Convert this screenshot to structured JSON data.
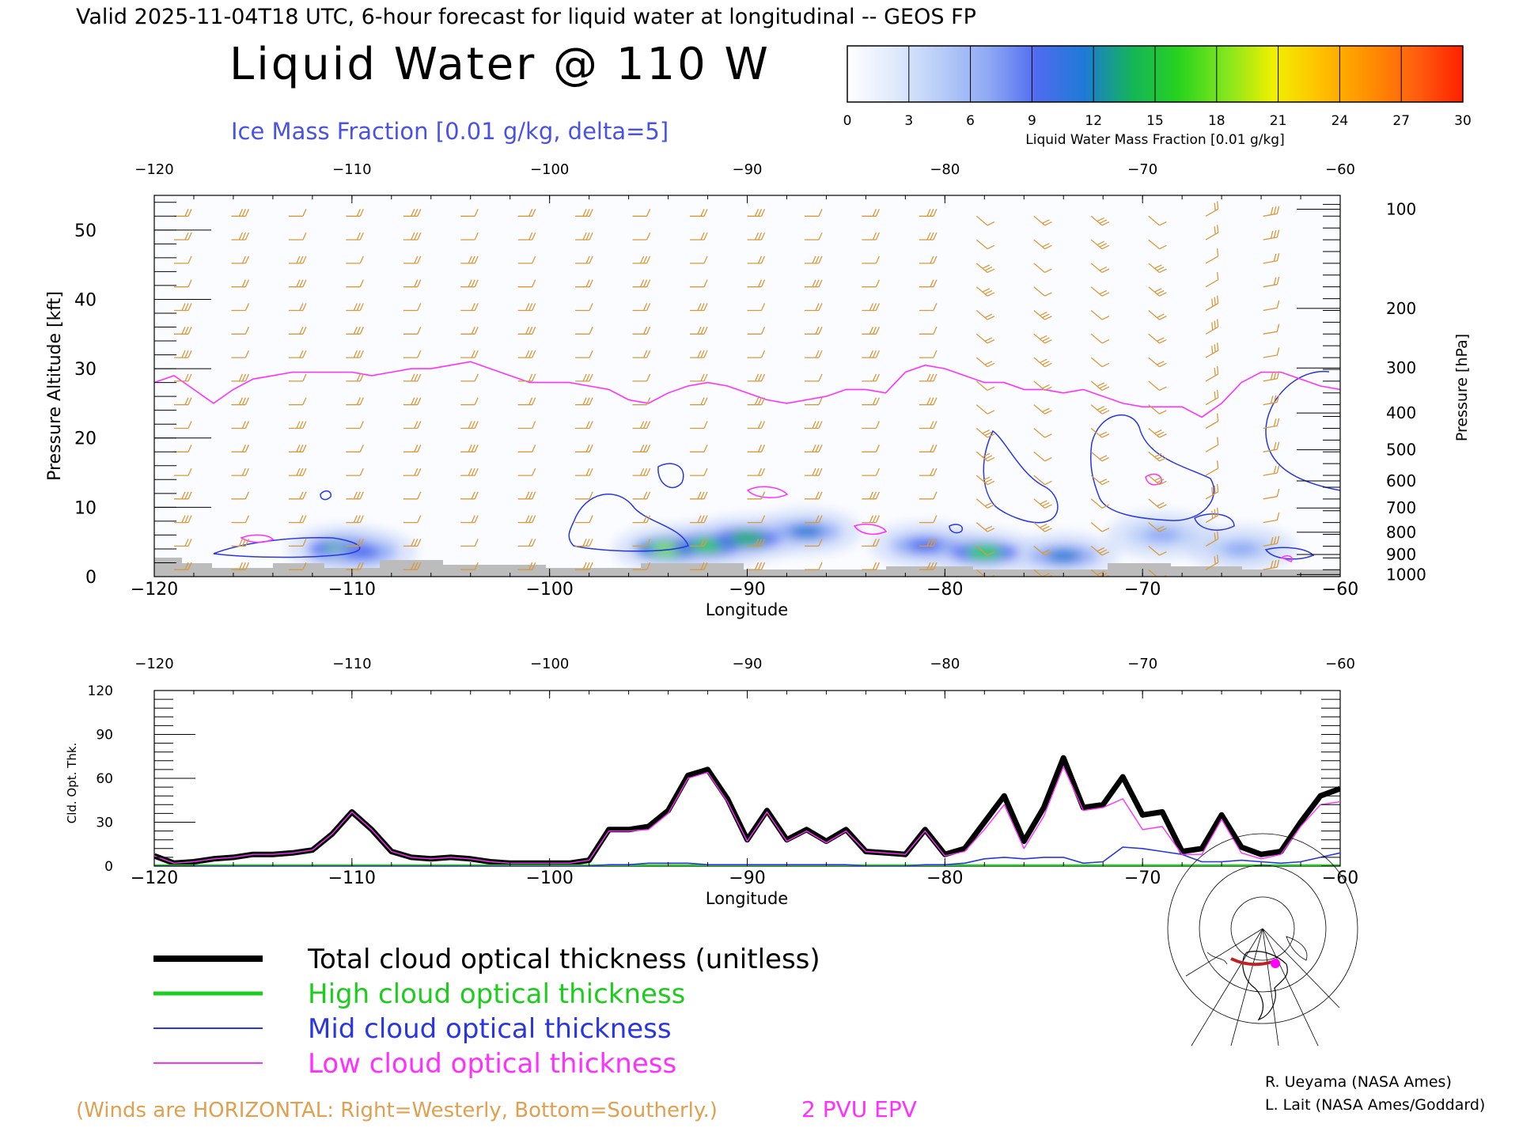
{
  "header": {
    "valid_line": "Valid 2025-11-04T18 UTC, 6-hour forecast for liquid water at longitudinal -- GEOS FP",
    "main_title": "Liquid Water @ 110 W",
    "subtitle": "Ice Mass Fraction [0.01 g/kg, delta=5]"
  },
  "colorbar": {
    "label": "Liquid Water Mass Fraction [0.01 g/kg]",
    "ticks": [
      "0",
      "3",
      "6",
      "9",
      "12",
      "15",
      "18",
      "21",
      "24",
      "27",
      "30"
    ],
    "colors": [
      "#ffffff",
      "#e0eafc",
      "#b6ccf8",
      "#8ea8f4",
      "#4f6cf0",
      "#1e7ad6",
      "#14b45a",
      "#28d21e",
      "#82e61e",
      "#f0f000",
      "#ffc000",
      "#ff9000",
      "#ff6010",
      "#ff2000"
    ]
  },
  "colors": {
    "wind_barb": "#d89a3c",
    "epv_line": "#ff30ff",
    "ice_contour": "#2a36e0",
    "terrain": "#bcbcbc",
    "title_blue": "#4a52e0",
    "winds_note": "#e0a050"
  },
  "chart_data": [
    {
      "type": "heatmap",
      "xlabel": "Longitude",
      "ylabel_left": "Pressure Altitude [kft]",
      "ylabel_right": "Pressure [hPa]",
      "xlim": [
        -120,
        -60
      ],
      "ylim": [
        0,
        55
      ],
      "x_ticks": [
        "−120",
        "−110",
        "−100",
        "−90",
        "−80",
        "−70",
        "−60"
      ],
      "y_ticks": [
        "0",
        "10",
        "20",
        "30",
        "40",
        "50"
      ],
      "pressure_ticks": [
        {
          "label": "100",
          "kft": 53
        },
        {
          "label": "200",
          "kft": 38.7
        },
        {
          "label": "300",
          "kft": 30.1
        },
        {
          "label": "400",
          "kft": 23.6
        },
        {
          "label": "500",
          "kft": 18.3
        },
        {
          "label": "600",
          "kft": 13.8
        },
        {
          "label": "700",
          "kft": 9.9
        },
        {
          "label": "800",
          "kft": 6.4
        },
        {
          "label": "900",
          "kft": 3.2
        },
        {
          "label": "1000",
          "kft": 0.3
        }
      ],
      "epv_2pvu_line": {
        "lon": [
          -120,
          -119,
          -118,
          -117,
          -116,
          -115,
          -114,
          -113,
          -112,
          -111,
          -110,
          -109,
          -108,
          -107,
          -106,
          -105,
          -104,
          -103,
          -102,
          -101,
          -100,
          -99,
          -98,
          -97,
          -96,
          -95,
          -94,
          -93,
          -92,
          -91,
          -90,
          -89,
          -88,
          -87,
          -86,
          -85,
          -84,
          -83,
          -82,
          -81,
          -80,
          -79,
          -78,
          -77,
          -76,
          -75,
          -74,
          -73,
          -72,
          -71,
          -70,
          -69,
          -68,
          -67,
          -66,
          -65,
          -64,
          -63,
          -62,
          -61,
          -60
        ],
        "kft": [
          28,
          29,
          27,
          25,
          27,
          28.5,
          29,
          29.5,
          29.5,
          29.5,
          29.5,
          29,
          29.5,
          30,
          30,
          30.5,
          31,
          30,
          29,
          28,
          28,
          28,
          27.5,
          27,
          25.5,
          25,
          26.5,
          27.5,
          28,
          27.5,
          26.5,
          25.5,
          25,
          25.5,
          26,
          27,
          27,
          26.5,
          29.5,
          30.5,
          30,
          29,
          28,
          28,
          27,
          27,
          26.5,
          27,
          26,
          25,
          24.5,
          24.5,
          24.5,
          23,
          25,
          28,
          29.5,
          29.5,
          28.5,
          27.5,
          27
        ]
      },
      "liquid_water_blobs": [
        {
          "lon": -110.5,
          "kft": 4,
          "value": 16
        },
        {
          "lon": -109.5,
          "kft": 3.5,
          "value": 10
        },
        {
          "lon": -94,
          "kft": 4,
          "value": 18
        },
        {
          "lon": -92,
          "kft": 4.5,
          "value": 16
        },
        {
          "lon": -90,
          "kft": 5.5,
          "value": 14
        },
        {
          "lon": -87,
          "kft": 6.5,
          "value": 12
        },
        {
          "lon": -81,
          "kft": 4.5,
          "value": 10
        },
        {
          "lon": -78,
          "kft": 3.5,
          "value": 15
        },
        {
          "lon": -74,
          "kft": 3,
          "value": 12
        },
        {
          "lon": -69,
          "kft": 6,
          "value": 8
        },
        {
          "lon": -65,
          "kft": 4,
          "value": 7
        }
      ]
    },
    {
      "type": "line",
      "xlabel": "Longitude",
      "ylabel": "Cld. Opt. Thk.",
      "xlim": [
        -120,
        -60
      ],
      "ylim": [
        0,
        120
      ],
      "x_ticks": [
        "−120",
        "−110",
        "−100",
        "−90",
        "−80",
        "−70",
        "−60"
      ],
      "y_ticks": [
        "0",
        "30",
        "60",
        "90",
        "120"
      ],
      "x": [
        -120,
        -119,
        -118,
        -117,
        -116,
        -115,
        -114,
        -113,
        -112,
        -111,
        -110,
        -109,
        -108,
        -107,
        -106,
        -105,
        -104,
        -103,
        -102,
        -101,
        -100,
        -99,
        -98,
        -97,
        -96,
        -95,
        -94,
        -93,
        -92,
        -91,
        -90,
        -89,
        -88,
        -87,
        -86,
        -85,
        -84,
        -83,
        -82,
        -81,
        -80,
        -79,
        -78,
        -77,
        -76,
        -75,
        -74,
        -73,
        -72,
        -71,
        -70,
        -69,
        -68,
        -67,
        -66,
        -65,
        -64,
        -63,
        -62,
        -61,
        -60
      ],
      "series": [
        {
          "name": "Total cloud optical thickness (unitless)",
          "color": "#000000",
          "values": [
            7,
            2,
            3,
            5,
            6,
            8,
            8,
            9,
            11,
            22,
            37,
            25,
            10,
            6,
            5,
            6,
            5,
            3,
            2,
            2,
            2,
            2,
            4,
            25,
            25,
            27,
            38,
            62,
            66,
            46,
            18,
            38,
            18,
            25,
            17,
            25,
            10,
            9,
            8,
            25,
            8,
            12,
            30,
            48,
            17,
            40,
            74,
            40,
            42,
            61,
            35,
            37,
            10,
            12,
            35,
            13,
            8,
            10,
            30,
            48,
            53
          ]
        },
        {
          "name": "High cloud optical thickness",
          "color": "#1ecc1e",
          "values": [
            0,
            0,
            0,
            0,
            0,
            0,
            0,
            0,
            0,
            0,
            0,
            0,
            0,
            0,
            0,
            0,
            0,
            0,
            0,
            0,
            0,
            0,
            0,
            0,
            0,
            0,
            0,
            0,
            0,
            0,
            0,
            0,
            0,
            0,
            0,
            0,
            0,
            0,
            0,
            0,
            0,
            0,
            0,
            0,
            0,
            0,
            0,
            0,
            0,
            0,
            0,
            0,
            0,
            0,
            0,
            0,
            0,
            0,
            0,
            0,
            0
          ]
        },
        {
          "name": "Mid cloud optical thickness",
          "color": "#2a36e0",
          "values": [
            0,
            0,
            0,
            0,
            0,
            0,
            0,
            0,
            0,
            0,
            0,
            0,
            0,
            0,
            0,
            0,
            0,
            0,
            0,
            0,
            0,
            0,
            0,
            1,
            1,
            2,
            2,
            2,
            1,
            1,
            1,
            1,
            1,
            1,
            1,
            1,
            0,
            0,
            0,
            1,
            1,
            2,
            5,
            6,
            5,
            6,
            6,
            2,
            3,
            13,
            12,
            10,
            8,
            3,
            3,
            4,
            3,
            2,
            3,
            6,
            9
          ]
        },
        {
          "name": "Low cloud optical thickness",
          "color": "#ff30ff",
          "values": [
            7,
            2,
            3,
            5,
            6,
            8,
            8,
            9,
            11,
            22,
            37,
            25,
            10,
            6,
            5,
            6,
            5,
            3,
            2,
            2,
            2,
            2,
            4,
            24,
            24,
            25,
            36,
            60,
            64,
            44,
            17,
            37,
            17,
            24,
            16,
            24,
            10,
            9,
            8,
            24,
            7,
            10,
            25,
            42,
            12,
            34,
            68,
            38,
            40,
            46,
            25,
            27,
            8,
            8,
            32,
            9,
            5,
            8,
            27,
            42,
            44
          ]
        }
      ]
    }
  ],
  "legend": {
    "items": [
      {
        "label": "Total cloud optical thickness (unitless)",
        "color": "#000000"
      },
      {
        "label": "High cloud optical thickness",
        "color": "#1ecc1e"
      },
      {
        "label": "Mid cloud optical thickness",
        "color": "#2a36e0"
      },
      {
        "label": "Low cloud optical thickness",
        "color": "#ff30ff"
      }
    ]
  },
  "footer": {
    "winds_note": "(Winds are HORIZONTAL: Right=Westerly, Bottom=Southerly.)",
    "epv_label": "2 PVU EPV",
    "credit1": "R. Ueyama (NASA Ames)",
    "credit2": "L. Lait (NASA Ames/Goddard)"
  }
}
